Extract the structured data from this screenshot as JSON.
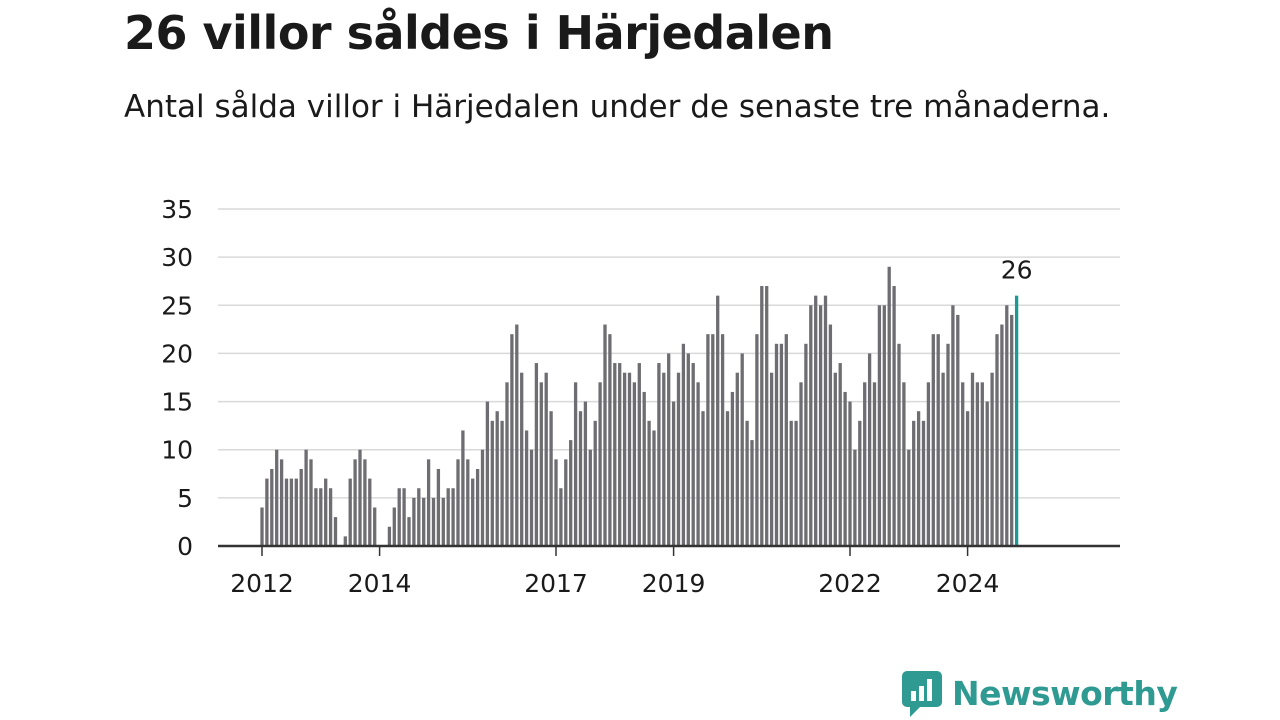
{
  "header": {
    "title": "26 villor såldes i Härjedalen",
    "subtitle": "Antal sålda villor i Härjedalen under de senaste tre månaderna."
  },
  "brand": {
    "name": "Newsworthy",
    "color": "#2f9a92",
    "icon": "newsworthy-chart-bubble-icon"
  },
  "colors": {
    "bar": "#6e6d72",
    "highlight": "#1a9a92",
    "grid": "#d9d9d9",
    "axis": "#333333"
  },
  "chart_data": {
    "type": "bar",
    "title": "26 villor såldes i Härjedalen",
    "subtitle": "Antal sålda villor i Härjedalen under de senaste tre månaderna.",
    "xlabel": "",
    "ylabel": "",
    "ylim": [
      0,
      35
    ],
    "yticks": [
      0,
      5,
      10,
      15,
      20,
      25,
      30,
      35
    ],
    "grid": true,
    "frequency": "monthly",
    "start": "2012-01",
    "xticks": [
      {
        "label": "2012",
        "index": 0
      },
      {
        "label": "2014",
        "index": 24
      },
      {
        "label": "2017",
        "index": 60
      },
      {
        "label": "2019",
        "index": 84
      },
      {
        "label": "2022",
        "index": 120
      },
      {
        "label": "2024",
        "index": 144
      }
    ],
    "values": [
      4,
      7,
      8,
      10,
      9,
      7,
      7,
      7,
      8,
      10,
      9,
      6,
      6,
      7,
      6,
      3,
      0,
      1,
      7,
      9,
      10,
      9,
      7,
      4,
      0,
      0,
      2,
      4,
      6,
      6,
      3,
      5,
      6,
      5,
      9,
      5,
      8,
      5,
      6,
      6,
      9,
      12,
      9,
      7,
      8,
      10,
      15,
      13,
      14,
      13,
      17,
      22,
      23,
      18,
      12,
      10,
      19,
      17,
      18,
      14,
      9,
      6,
      9,
      11,
      17,
      14,
      15,
      10,
      13,
      17,
      23,
      22,
      19,
      19,
      18,
      18,
      17,
      19,
      16,
      13,
      12,
      19,
      18,
      20,
      15,
      18,
      21,
      20,
      19,
      17,
      14,
      22,
      22,
      26,
      22,
      14,
      16,
      18,
      20,
      13,
      11,
      22,
      27,
      27,
      18,
      21,
      21,
      22,
      13,
      13,
      17,
      21,
      25,
      26,
      25,
      26,
      23,
      18,
      19,
      16,
      15,
      10,
      13,
      17,
      20,
      17,
      25,
      25,
      29,
      27,
      21,
      17,
      10,
      13,
      14,
      13,
      17,
      22,
      22,
      18,
      21,
      25,
      24,
      17,
      14,
      18,
      17,
      17,
      15,
      18,
      22,
      23,
      25,
      24,
      26
    ],
    "highlight": {
      "index": 154,
      "value": 26,
      "label": "26"
    }
  }
}
